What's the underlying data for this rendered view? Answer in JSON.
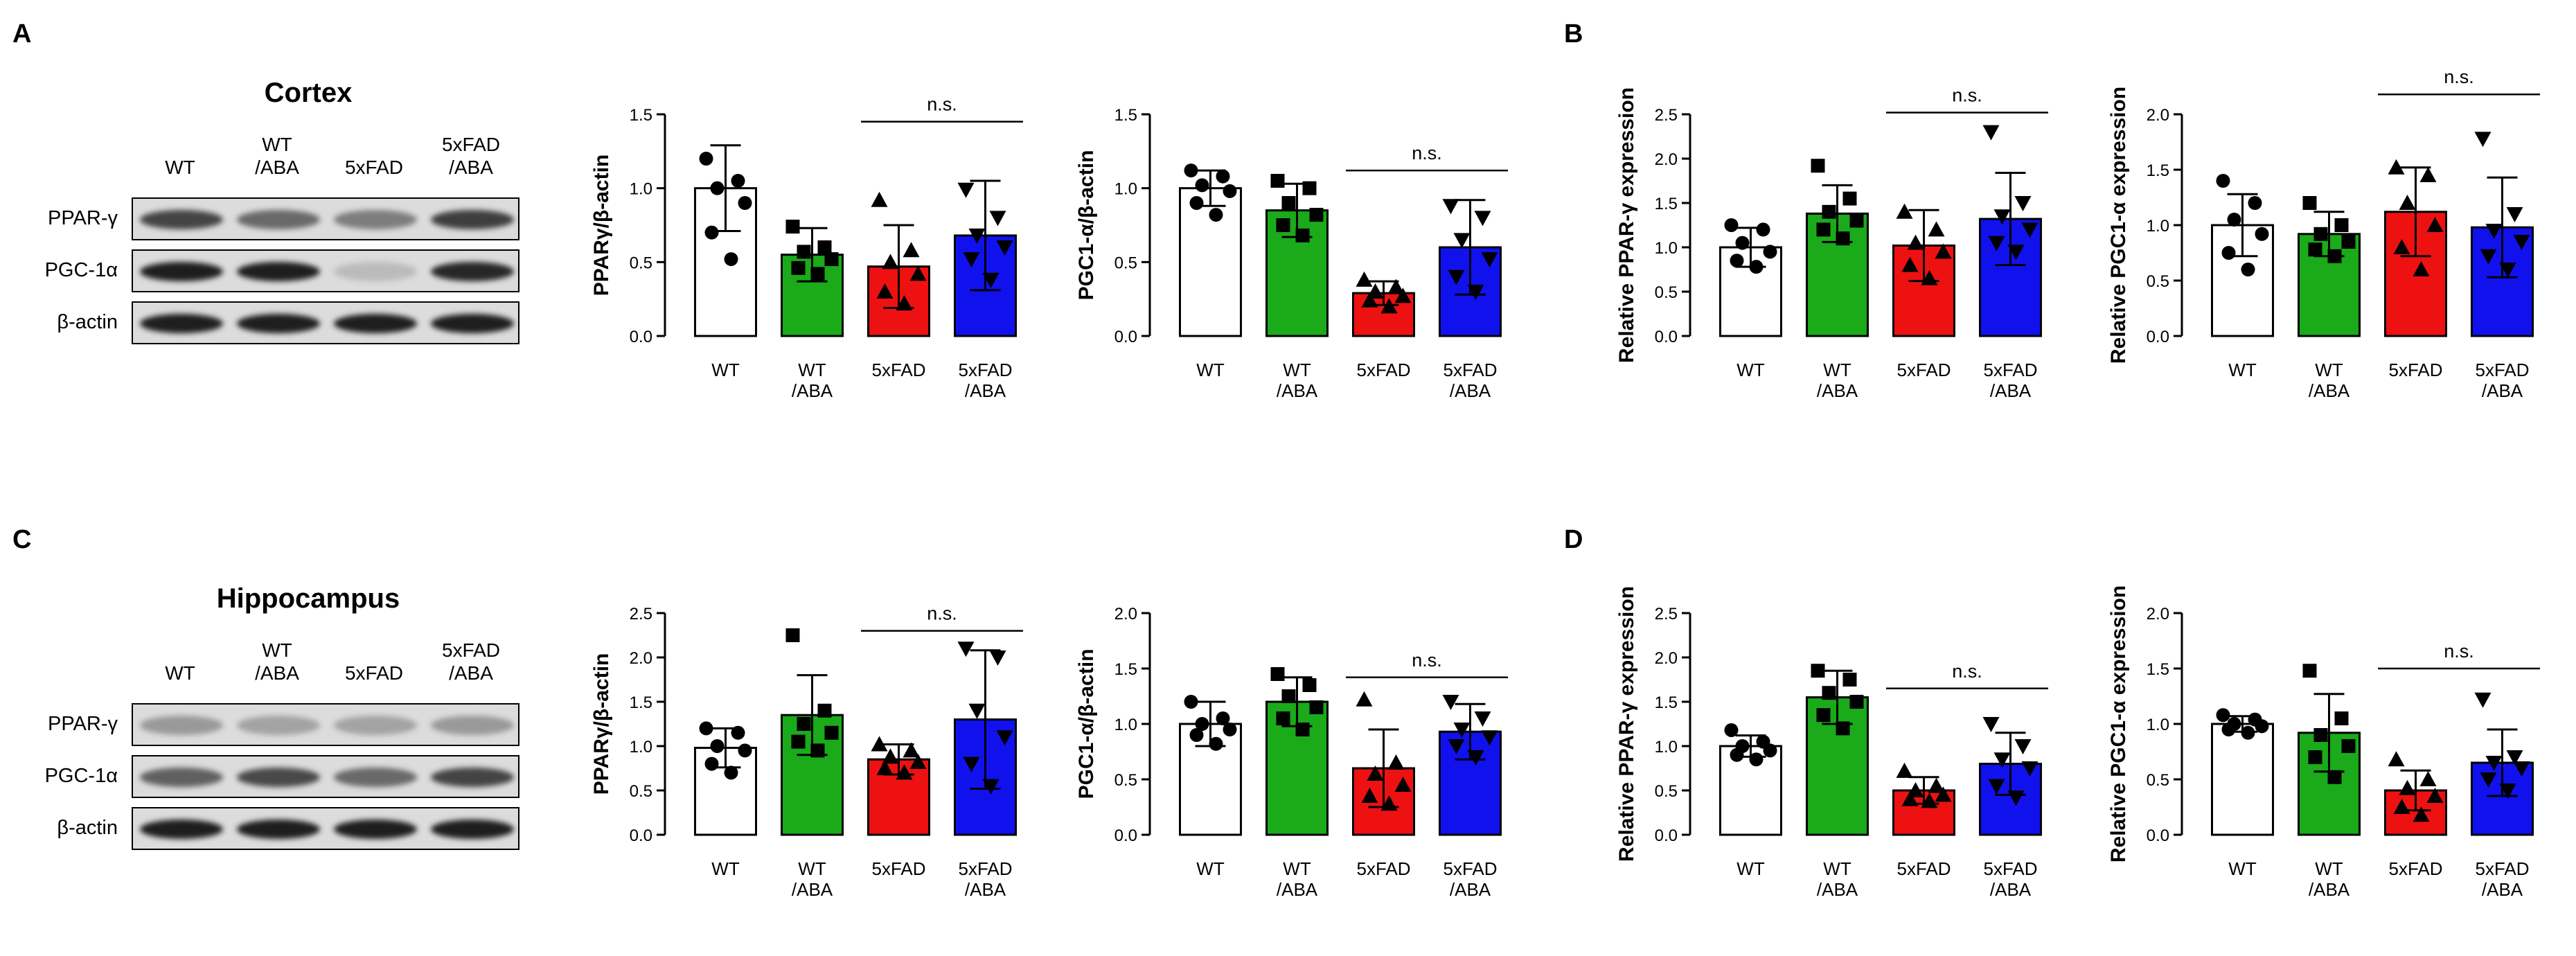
{
  "panel_letters": [
    "A",
    "B",
    "C",
    "D"
  ],
  "western_blots": [
    {
      "region": "Cortex",
      "columns": [
        [
          "WT"
        ],
        [
          "WT",
          "/ABA"
        ],
        [
          "5xFAD"
        ],
        [
          "5xFAD",
          "/ABA"
        ]
      ],
      "rows": [
        {
          "label": "PPAR-γ",
          "intensity": [
            0.75,
            0.55,
            0.45,
            0.78
          ]
        },
        {
          "label": "PGC-1α",
          "intensity": [
            0.95,
            0.95,
            0.12,
            0.9
          ]
        },
        {
          "label": "β-actin",
          "intensity": [
            0.95,
            0.95,
            0.95,
            0.95
          ]
        }
      ]
    },
    {
      "region": "Hippocampus",
      "columns": [
        [
          "WT"
        ],
        [
          "WT",
          "/ABA"
        ],
        [
          "5xFAD"
        ],
        [
          "5xFAD",
          "/ABA"
        ]
      ],
      "rows": [
        {
          "label": "PPAR-γ",
          "intensity": [
            0.3,
            0.25,
            0.25,
            0.3
          ]
        },
        {
          "label": "PGC-1α",
          "intensity": [
            0.6,
            0.72,
            0.55,
            0.75
          ]
        },
        {
          "label": "β-actin",
          "intensity": [
            0.95,
            0.95,
            0.95,
            0.95
          ]
        }
      ]
    }
  ],
  "bar_colors": [
    "#ffffff",
    "#1aaa1a",
    "#ee1111",
    "#1111ee"
  ],
  "chart_data": [
    {
      "type": "bar",
      "ylabel": "PPARγ/β-actin",
      "ylim": [
        0,
        1.5
      ],
      "ticks": [
        "0.0",
        "0.5",
        "1.0",
        "1.5"
      ],
      "tick_values": [
        0,
        0.5,
        1,
        1.5
      ],
      "categories": [
        [
          "WT"
        ],
        [
          "WT",
          "/ABA"
        ],
        [
          "5xFAD"
        ],
        [
          "5xFAD",
          "/ABA"
        ]
      ],
      "values": [
        1.0,
        0.55,
        0.47,
        0.68
      ],
      "errors": [
        0.29,
        0.18,
        0.28,
        0.37
      ],
      "markers": [
        "circle",
        "square",
        "triangle",
        "triangle-down"
      ],
      "points": [
        [
          1.2,
          1.05,
          1.0,
          0.9,
          0.7,
          0.52
        ],
        [
          0.74,
          0.6,
          0.57,
          0.52,
          0.46,
          0.42
        ],
        [
          0.92,
          0.58,
          0.5,
          0.42,
          0.3,
          0.22
        ],
        [
          0.99,
          0.8,
          0.68,
          0.6,
          0.52,
          0.38
        ]
      ],
      "annotation": "n.s.",
      "annotation_span": [
        2,
        3
      ],
      "annotation_y": 1.45
    },
    {
      "type": "bar",
      "ylabel": "PGC1-α/β-actin",
      "ylim": [
        0,
        1.5
      ],
      "ticks": [
        "0.0",
        "0.5",
        "1.0",
        "1.5"
      ],
      "tick_values": [
        0,
        0.5,
        1,
        1.5
      ],
      "categories": [
        [
          "WT"
        ],
        [
          "WT",
          "/ABA"
        ],
        [
          "5xFAD"
        ],
        [
          "5xFAD",
          "/ABA"
        ]
      ],
      "values": [
        1.0,
        0.85,
        0.29,
        0.6
      ],
      "errors": [
        0.12,
        0.18,
        0.08,
        0.32
      ],
      "markers": [
        "circle",
        "square",
        "triangle",
        "triangle-down"
      ],
      "points": [
        [
          1.12,
          1.08,
          1.02,
          0.98,
          0.9,
          0.82
        ],
        [
          1.05,
          1.0,
          0.9,
          0.82,
          0.75,
          0.68
        ],
        [
          0.38,
          0.33,
          0.3,
          0.27,
          0.24,
          0.2
        ],
        [
          0.88,
          0.8,
          0.65,
          0.52,
          0.4,
          0.3
        ]
      ],
      "annotation": "n.s.",
      "annotation_span": [
        2,
        3
      ],
      "annotation_y": 1.12
    },
    {
      "type": "bar",
      "ylabel": "Relative PPAR-γ expression",
      "ylim": [
        0,
        2.5
      ],
      "ticks": [
        "0.0",
        "0.5",
        "1.0",
        "1.5",
        "2.0",
        "2.5"
      ],
      "tick_values": [
        0,
        0.5,
        1,
        1.5,
        2,
        2.5
      ],
      "categories": [
        [
          "WT"
        ],
        [
          "WT",
          "/ABA"
        ],
        [
          "5xFAD"
        ],
        [
          "5xFAD",
          "/ABA"
        ]
      ],
      "values": [
        1.0,
        1.38,
        1.02,
        1.32
      ],
      "errors": [
        0.22,
        0.32,
        0.4,
        0.52
      ],
      "markers": [
        "circle",
        "square",
        "triangle",
        "triangle-down"
      ],
      "points": [
        [
          1.25,
          1.2,
          1.05,
          0.95,
          0.85,
          0.78
        ],
        [
          1.92,
          1.55,
          1.4,
          1.3,
          1.2,
          1.1
        ],
        [
          1.4,
          1.2,
          1.05,
          0.95,
          0.8,
          0.65
        ],
        [
          2.3,
          1.5,
          1.35,
          1.2,
          1.05,
          0.95
        ]
      ],
      "annotation": "n.s.",
      "annotation_span": [
        2,
        3
      ],
      "annotation_y": 2.52
    },
    {
      "type": "bar",
      "ylabel": "Relative PGC1-α expression",
      "ylim": [
        0,
        2.0
      ],
      "ticks": [
        "0.0",
        "0.5",
        "1.0",
        "1.5",
        "2.0"
      ],
      "tick_values": [
        0,
        0.5,
        1,
        1.5,
        2
      ],
      "categories": [
        [
          "WT"
        ],
        [
          "WT",
          "/ABA"
        ],
        [
          "5xFAD"
        ],
        [
          "5xFAD",
          "/ABA"
        ]
      ],
      "values": [
        1.0,
        0.92,
        1.12,
        0.98
      ],
      "errors": [
        0.28,
        0.2,
        0.4,
        0.45
      ],
      "markers": [
        "circle",
        "square",
        "triangle",
        "triangle-down"
      ],
      "points": [
        [
          1.4,
          1.2,
          1.05,
          0.92,
          0.75,
          0.6
        ],
        [
          1.2,
          1.0,
          0.92,
          0.85,
          0.78,
          0.72
        ],
        [
          1.52,
          1.45,
          1.2,
          1.0,
          0.8,
          0.6
        ],
        [
          1.78,
          1.1,
          0.95,
          0.85,
          0.72,
          0.6
        ]
      ],
      "annotation": "n.s.",
      "annotation_span": [
        2,
        3
      ],
      "annotation_y": 2.18
    },
    {
      "type": "bar",
      "ylabel": "PPARγ/β-actin",
      "ylim": [
        0,
        2.5
      ],
      "ticks": [
        "0.0",
        "0.5",
        "1.0",
        "1.5",
        "2.0",
        "2.5"
      ],
      "tick_values": [
        0,
        0.5,
        1,
        1.5,
        2,
        2.5
      ],
      "categories": [
        [
          "WT"
        ],
        [
          "WT",
          "/ABA"
        ],
        [
          "5xFAD"
        ],
        [
          "5xFAD",
          "/ABA"
        ]
      ],
      "values": [
        0.98,
        1.35,
        0.85,
        1.3
      ],
      "errors": [
        0.22,
        0.45,
        0.17,
        0.78
      ],
      "markers": [
        "circle",
        "square",
        "triangle",
        "triangle-down"
      ],
      "points": [
        [
          1.2,
          1.15,
          1.0,
          0.95,
          0.8,
          0.7
        ],
        [
          2.25,
          1.4,
          1.25,
          1.15,
          1.05,
          0.95
        ],
        [
          1.02,
          0.95,
          0.88,
          0.82,
          0.75,
          0.7
        ],
        [
          2.1,
          2.0,
          1.4,
          1.1,
          0.8,
          0.55
        ]
      ],
      "annotation": "n.s.",
      "annotation_span": [
        2,
        3
      ],
      "annotation_y": 2.3
    },
    {
      "type": "bar",
      "ylabel": "PGC1-α/β-actin",
      "ylim": [
        0,
        2.0
      ],
      "ticks": [
        "0.0",
        "0.5",
        "1.0",
        "1.5",
        "2.0"
      ],
      "tick_values": [
        0,
        0.5,
        1,
        1.5,
        2
      ],
      "categories": [
        [
          "WT"
        ],
        [
          "WT",
          "/ABA"
        ],
        [
          "5xFAD"
        ],
        [
          "5xFAD",
          "/ABA"
        ]
      ],
      "values": [
        1.0,
        1.2,
        0.6,
        0.93
      ],
      "errors": [
        0.2,
        0.22,
        0.35,
        0.25
      ],
      "markers": [
        "circle",
        "square",
        "triangle",
        "triangle-down"
      ],
      "points": [
        [
          1.2,
          1.05,
          1.0,
          0.95,
          0.9,
          0.82
        ],
        [
          1.45,
          1.35,
          1.25,
          1.15,
          1.05,
          0.95
        ],
        [
          1.22,
          0.65,
          0.55,
          0.45,
          0.35,
          0.28
        ],
        [
          1.2,
          1.05,
          0.95,
          0.88,
          0.8,
          0.7
        ]
      ],
      "annotation": "n.s.",
      "annotation_span": [
        2,
        3
      ],
      "annotation_y": 1.42
    },
    {
      "type": "bar",
      "ylabel": "Relative PPAR-γ expression",
      "ylim": [
        0,
        2.5
      ],
      "ticks": [
        "0.0",
        "0.5",
        "1.0",
        "1.5",
        "2.0",
        "2.5"
      ],
      "tick_values": [
        0,
        0.5,
        1,
        1.5,
        2,
        2.5
      ],
      "categories": [
        [
          "WT"
        ],
        [
          "WT",
          "/ABA"
        ],
        [
          "5xFAD"
        ],
        [
          "5xFAD",
          "/ABA"
        ]
      ],
      "values": [
        1.0,
        1.55,
        0.5,
        0.8
      ],
      "errors": [
        0.12,
        0.3,
        0.15,
        0.35
      ],
      "markers": [
        "circle",
        "square",
        "triangle",
        "triangle-down"
      ],
      "points": [
        [
          1.18,
          1.05,
          1.0,
          0.95,
          0.9,
          0.85
        ],
        [
          1.85,
          1.75,
          1.6,
          1.5,
          1.35,
          1.2
        ],
        [
          0.72,
          0.55,
          0.5,
          0.45,
          0.4,
          0.38
        ],
        [
          1.25,
          1.0,
          0.85,
          0.75,
          0.55,
          0.42
        ]
      ],
      "annotation": "n.s.",
      "annotation_span": [
        2,
        3
      ],
      "annotation_y": 1.65
    },
    {
      "type": "bar",
      "ylabel": "Relative PGC1-α expression",
      "ylim": [
        0,
        2.0
      ],
      "ticks": [
        "0.0",
        "0.5",
        "1.0",
        "1.5",
        "2.0"
      ],
      "tick_values": [
        0,
        0.5,
        1,
        1.5,
        2
      ],
      "categories": [
        [
          "WT"
        ],
        [
          "WT",
          "/ABA"
        ],
        [
          "5xFAD"
        ],
        [
          "5xFAD",
          "/ABA"
        ]
      ],
      "values": [
        1.0,
        0.92,
        0.4,
        0.65
      ],
      "errors": [
        0.07,
        0.35,
        0.18,
        0.3
      ],
      "markers": [
        "circle",
        "square",
        "triangle",
        "triangle-down"
      ],
      "points": [
        [
          1.08,
          1.04,
          1.0,
          0.98,
          0.95,
          0.92
        ],
        [
          1.48,
          1.05,
          0.9,
          0.8,
          0.7,
          0.52
        ],
        [
          0.68,
          0.5,
          0.42,
          0.35,
          0.25,
          0.18
        ],
        [
          1.22,
          0.7,
          0.65,
          0.6,
          0.5,
          0.4
        ]
      ],
      "annotation": "n.s.",
      "annotation_span": [
        2,
        3
      ],
      "annotation_y": 1.5
    }
  ]
}
